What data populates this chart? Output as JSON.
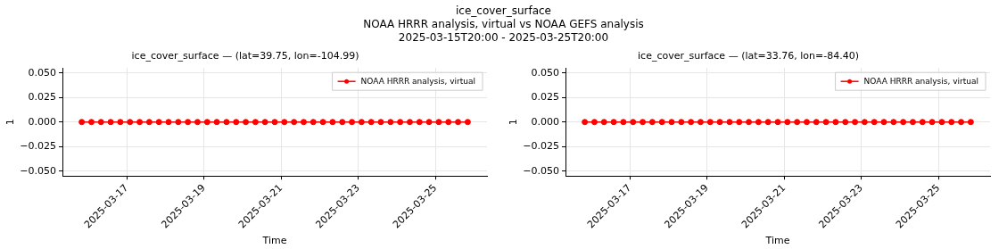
{
  "chart_data": [
    {
      "type": "line",
      "title": "ice_cover_surface\nNOAA HRRR analysis, virtual vs NOAA GEFS analysis\n2025-03-15T20:00 - 2025-03-25T20:00",
      "subtitle": "ice_cover_surface — (lat=39.75, lon=-104.99)",
      "xlabel": "Time",
      "ylabel": "1",
      "x": [
        "2025-03-15T20:00",
        "2025-03-16T02:00",
        "2025-03-16T08:00",
        "2025-03-16T14:00",
        "2025-03-16T20:00",
        "2025-03-17T02:00",
        "2025-03-17T08:00",
        "2025-03-17T14:00",
        "2025-03-17T20:00",
        "2025-03-18T02:00",
        "2025-03-18T08:00",
        "2025-03-18T14:00",
        "2025-03-18T20:00",
        "2025-03-19T02:00",
        "2025-03-19T08:00",
        "2025-03-19T14:00",
        "2025-03-19T20:00",
        "2025-03-20T02:00",
        "2025-03-20T08:00",
        "2025-03-20T14:00",
        "2025-03-20T20:00",
        "2025-03-21T02:00",
        "2025-03-21T08:00",
        "2025-03-21T14:00",
        "2025-03-21T20:00",
        "2025-03-22T02:00",
        "2025-03-22T08:00",
        "2025-03-22T14:00",
        "2025-03-22T20:00",
        "2025-03-23T02:00",
        "2025-03-23T08:00",
        "2025-03-23T14:00",
        "2025-03-23T20:00",
        "2025-03-24T02:00",
        "2025-03-24T08:00",
        "2025-03-24T14:00",
        "2025-03-24T20:00",
        "2025-03-25T02:00",
        "2025-03-25T08:00",
        "2025-03-25T14:00",
        "2025-03-25T20:00"
      ],
      "series": [
        {
          "name": "NOAA HRRR analysis, virtual",
          "color": "#ff0000",
          "values": [
            0,
            0,
            0,
            0,
            0,
            0,
            0,
            0,
            0,
            0,
            0,
            0,
            0,
            0,
            0,
            0,
            0,
            0,
            0,
            0,
            0,
            0,
            0,
            0,
            0,
            0,
            0,
            0,
            0,
            0,
            0,
            0,
            0,
            0,
            0,
            0,
            0,
            0,
            0,
            0,
            0
          ]
        }
      ],
      "xlim": [
        "2025-03-15T08:00",
        "2025-03-26T08:00"
      ],
      "xticks": [
        "2025-03-17",
        "2025-03-19",
        "2025-03-21",
        "2025-03-23",
        "2025-03-25"
      ],
      "ylim": [
        -0.055,
        0.055
      ],
      "yticks": [
        {
          "value": -0.05,
          "label": "−0.050"
        },
        {
          "value": -0.025,
          "label": "−0.025"
        },
        {
          "value": 0,
          "label": "0.000"
        },
        {
          "value": 0.025,
          "label": "0.025"
        },
        {
          "value": 0.05,
          "label": "0.050"
        }
      ],
      "grid": true,
      "legend": "top right",
      "marker": "circle",
      "line_style": "solid"
    },
    {
      "type": "line",
      "subtitle": "ice_cover_surface — (lat=33.76, lon=-84.40)",
      "xlabel": "Time",
      "ylabel": "1",
      "x": [
        "2025-03-15T20:00",
        "2025-03-16T02:00",
        "2025-03-16T08:00",
        "2025-03-16T14:00",
        "2025-03-16T20:00",
        "2025-03-17T02:00",
        "2025-03-17T08:00",
        "2025-03-17T14:00",
        "2025-03-17T20:00",
        "2025-03-18T02:00",
        "2025-03-18T08:00",
        "2025-03-18T14:00",
        "2025-03-18T20:00",
        "2025-03-19T02:00",
        "2025-03-19T08:00",
        "2025-03-19T14:00",
        "2025-03-19T20:00",
        "2025-03-20T02:00",
        "2025-03-20T08:00",
        "2025-03-20T14:00",
        "2025-03-20T20:00",
        "2025-03-21T02:00",
        "2025-03-21T08:00",
        "2025-03-21T14:00",
        "2025-03-21T20:00",
        "2025-03-22T02:00",
        "2025-03-22T08:00",
        "2025-03-22T14:00",
        "2025-03-22T20:00",
        "2025-03-23T02:00",
        "2025-03-23T08:00",
        "2025-03-23T14:00",
        "2025-03-23T20:00",
        "2025-03-24T02:00",
        "2025-03-24T08:00",
        "2025-03-24T14:00",
        "2025-03-24T20:00",
        "2025-03-25T02:00",
        "2025-03-25T08:00",
        "2025-03-25T14:00",
        "2025-03-25T20:00"
      ],
      "series": [
        {
          "name": "NOAA HRRR analysis, virtual",
          "color": "#ff0000",
          "values": [
            0,
            0,
            0,
            0,
            0,
            0,
            0,
            0,
            0,
            0,
            0,
            0,
            0,
            0,
            0,
            0,
            0,
            0,
            0,
            0,
            0,
            0,
            0,
            0,
            0,
            0,
            0,
            0,
            0,
            0,
            0,
            0,
            0,
            0,
            0,
            0,
            0,
            0,
            0,
            0,
            0
          ]
        }
      ],
      "xlim": [
        "2025-03-15T08:00",
        "2025-03-26T08:00"
      ],
      "xticks": [
        "2025-03-17",
        "2025-03-19",
        "2025-03-21",
        "2025-03-23",
        "2025-03-25"
      ],
      "ylim": [
        -0.055,
        0.055
      ],
      "yticks": [
        {
          "value": -0.05,
          "label": "−0.050"
        },
        {
          "value": -0.025,
          "label": "−0.025"
        },
        {
          "value": 0,
          "label": "0.000"
        },
        {
          "value": 0.025,
          "label": "0.025"
        },
        {
          "value": 0.05,
          "label": "0.050"
        }
      ],
      "grid": true,
      "legend": "top right",
      "marker": "circle",
      "line_style": "solid"
    }
  ]
}
